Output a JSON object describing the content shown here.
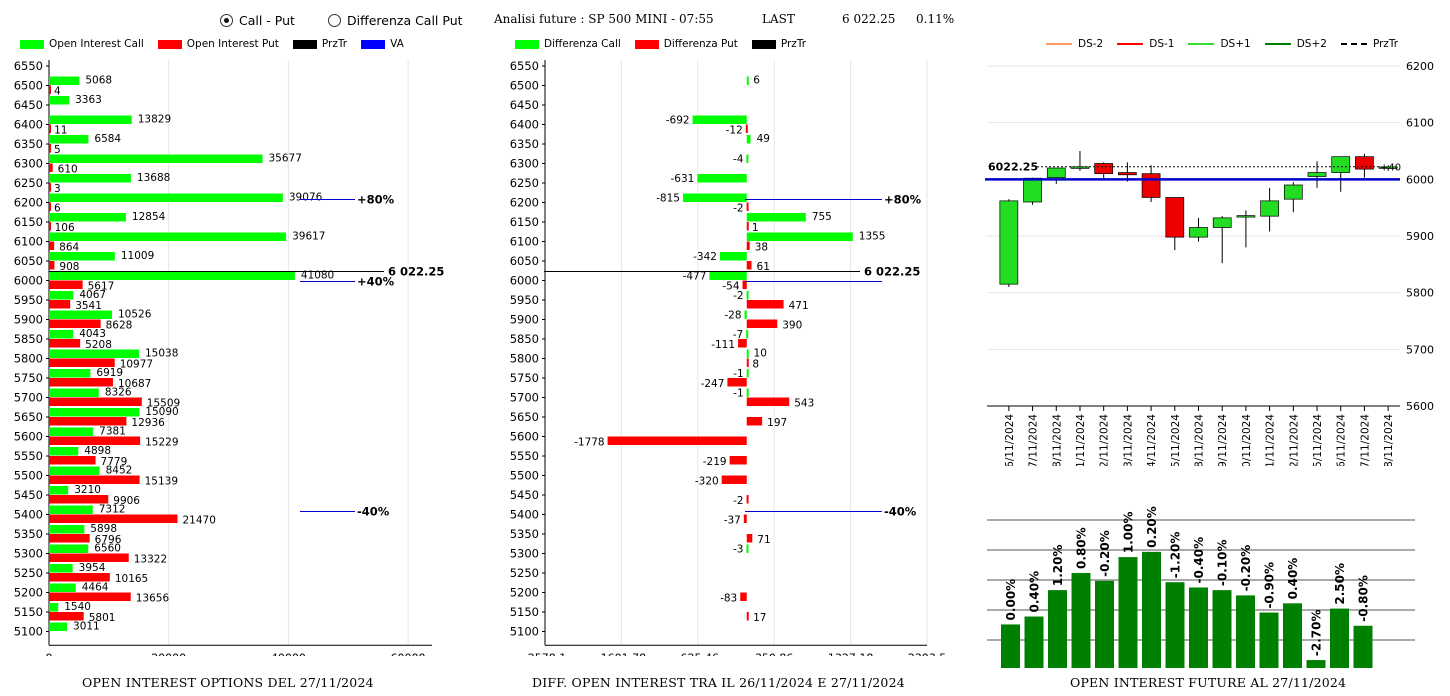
{
  "header": {
    "radio_call_put": "Call - Put",
    "radio_diff": "Differenza Call Put",
    "selected": "Call - Put",
    "title": "Analisi future : SP 500 MINI - 07:55",
    "last_label": "LAST",
    "last_value": "6 022.25",
    "last_change": "0.11%"
  },
  "legends": {
    "left": [
      {
        "label": "Open Interest Call",
        "color": "#00ff00",
        "kind": "box"
      },
      {
        "label": "Open Interest Put",
        "color": "#ff0000",
        "kind": "box"
      },
      {
        "label": "PrzTr",
        "color": "#000000",
        "kind": "box"
      },
      {
        "label": "VA",
        "color": "#0000ff",
        "kind": "box"
      }
    ],
    "middle": [
      {
        "label": "Differenza Call",
        "color": "#00ff00",
        "kind": "box"
      },
      {
        "label": "Differenza Put",
        "color": "#ff0000",
        "kind": "box"
      },
      {
        "label": "PrzTr",
        "color": "#000000",
        "kind": "box"
      }
    ],
    "right": [
      {
        "label": "DS-2",
        "color": "#ff9966",
        "kind": "line"
      },
      {
        "label": "DS-1",
        "color": "#ff0000",
        "kind": "line"
      },
      {
        "label": "DS+1",
        "color": "#33dd33",
        "kind": "line"
      },
      {
        "label": "DS+2",
        "color": "#008000",
        "kind": "line"
      },
      {
        "label": "PrzTr",
        "color": "#000000",
        "kind": "dash"
      }
    ]
  },
  "captions": {
    "left": "OPEN INTEREST OPTIONS DEL 27/11/2024",
    "middle": "DIFF. OPEN INTEREST TRA IL 26/11/2024 E 27/11/2024",
    "right": "OPEN INTEREST FUTURE AL 27/11/2024"
  },
  "chart_data": [
    {
      "type": "bar",
      "orientation": "horizontal",
      "strikes": [
        6550,
        6500,
        6450,
        6400,
        6350,
        6300,
        6250,
        6200,
        6150,
        6100,
        6050,
        6000,
        5950,
        5900,
        5850,
        5800,
        5750,
        5700,
        5650,
        5600,
        5550,
        5500,
        5450,
        5400,
        5350,
        5300,
        5250,
        5200,
        5150,
        5100
      ],
      "series": [
        {
          "name": "Open Interest Call",
          "color": "#00ff00",
          "values": [
            null,
            5068,
            3363,
            13829,
            6584,
            35677,
            13688,
            39076,
            12854,
            39617,
            11009,
            41080,
            4067,
            10526,
            4043,
            15038,
            6919,
            8326,
            15090,
            7381,
            4898,
            8452,
            3210,
            7312,
            5898,
            6560,
            3954,
            4464,
            1540,
            3011
          ]
        },
        {
          "name": "Open Interest Put",
          "color": "#ff0000",
          "values": [
            null,
            4,
            null,
            11,
            5,
            610,
            3,
            6,
            106,
            864,
            908,
            5617,
            3541,
            8628,
            5208,
            10977,
            10687,
            15509,
            12936,
            15229,
            7779,
            15139,
            9906,
            21470,
            6796,
            13322,
            10165,
            13656,
            5801,
            null
          ]
        }
      ],
      "xticks": [
        0,
        20000,
        40000,
        60000
      ],
      "xlim": [
        0,
        64000
      ],
      "przTr": {
        "label": "6 022.25",
        "strike": 6000
      },
      "va_lines": [
        {
          "strike": 6200,
          "label": "+80%"
        },
        {
          "strike": 6000,
          "label": "+40%"
        },
        {
          "strike": 5400,
          "label": "-40%"
        }
      ]
    },
    {
      "type": "bar",
      "orientation": "horizontal",
      "strikes": [
        6550,
        6500,
        6450,
        6400,
        6350,
        6300,
        6250,
        6200,
        6150,
        6100,
        6050,
        6000,
        5950,
        5900,
        5850,
        5800,
        5750,
        5700,
        5650,
        5600,
        5550,
        5500,
        5450,
        5400,
        5350,
        5300,
        5250,
        5200,
        5150,
        5100
      ],
      "series": [
        {
          "name": "Differenza Call",
          "color": "#00ff00",
          "values": [
            null,
            6,
            null,
            -692,
            49,
            -4,
            -631,
            -815,
            755,
            1355,
            -342,
            -477,
            -2,
            -28,
            -7,
            10,
            -1,
            -1,
            null,
            null,
            null,
            null,
            null,
            null,
            null,
            -3,
            null,
            null,
            null,
            null
          ]
        },
        {
          "name": "Differenza Put",
          "color": "#ff0000",
          "values": [
            null,
            null,
            null,
            -12,
            null,
            null,
            null,
            -2,
            1,
            38,
            61,
            -54,
            471,
            390,
            -111,
            8,
            -247,
            543,
            197,
            -1778,
            -219,
            -320,
            -2,
            -37,
            71,
            null,
            null,
            -83,
            17,
            null
          ]
        }
      ],
      "xticks": [
        -2578.1,
        -1601.78,
        -625.46,
        350.86,
        1327.18,
        2303.5
      ],
      "xlim": [
        -2578.1,
        2303.5
      ],
      "przTr": {
        "label": "6 022.25",
        "strike": 6000
      },
      "va_lines": [
        {
          "strike": 6200,
          "label": "+80%"
        },
        {
          "strike": 6000,
          "label": ""
        },
        {
          "strike": 5400,
          "label": "-40%"
        }
      ]
    },
    {
      "type": "candlestick",
      "dates": [
        "06/11/2024",
        "07/11/2024",
        "08/11/2024",
        "11/11/2024",
        "12/11/2024",
        "13/11/2024",
        "14/11/2024",
        "15/11/2024",
        "18/11/2024",
        "19/11/2024",
        "20/11/2024",
        "21/11/2024",
        "22/11/2024",
        "25/11/2024",
        "26/11/2024",
        "27/11/2024",
        "28/11/2024"
      ],
      "ohlc": [
        [
          5815,
          5965,
          5810,
          5962
        ],
        [
          5960,
          6003,
          5955,
          6002
        ],
        [
          6003,
          6020,
          5992,
          6020
        ],
        [
          6020,
          6050,
          6015,
          6022
        ],
        [
          6028,
          6030,
          6000,
          6010
        ],
        [
          6012,
          6030,
          5996,
          6008
        ],
        [
          6010,
          6025,
          5960,
          5968
        ],
        [
          5968,
          5968,
          5875,
          5898
        ],
        [
          5898,
          5932,
          5890,
          5915
        ],
        [
          5915,
          5935,
          5852,
          5932
        ],
        [
          5935,
          5945,
          5880,
          5936
        ],
        [
          5935,
          5985,
          5908,
          5962
        ],
        [
          5965,
          5995,
          5942,
          5990
        ],
        [
          6005,
          6032,
          5985,
          6012
        ],
        [
          6012,
          6040,
          5978,
          6040
        ],
        [
          6040,
          6045,
          6003,
          6018
        ],
        [
          6020,
          6025,
          6015,
          6022
        ]
      ],
      "ylim": [
        5600,
        6200
      ],
      "yticks": [
        5600,
        5700,
        5800,
        5900,
        6000,
        6100,
        6200
      ],
      "przTr_label": "6022.25",
      "przTr_value": 6022.25,
      "va_line": 6000,
      "last_tag": "+40",
      "oi_bars": {
        "labels": [
          "0.00%",
          "0.40%",
          "1.20%",
          "0.80%",
          "-0.20%",
          "1.00%",
          "0.20%",
          "-1.20%",
          "-0.40%",
          "-0.10%",
          "-0.20%",
          "-0.90%",
          "0.40%",
          "-2.70%",
          "2.50%",
          "-0.80%"
        ],
        "heights": [
          0.33,
          0.39,
          0.59,
          0.72,
          0.66,
          0.84,
          0.88,
          0.65,
          0.61,
          0.59,
          0.55,
          0.42,
          0.49,
          0.06,
          0.45,
          0.32
        ]
      }
    }
  ]
}
